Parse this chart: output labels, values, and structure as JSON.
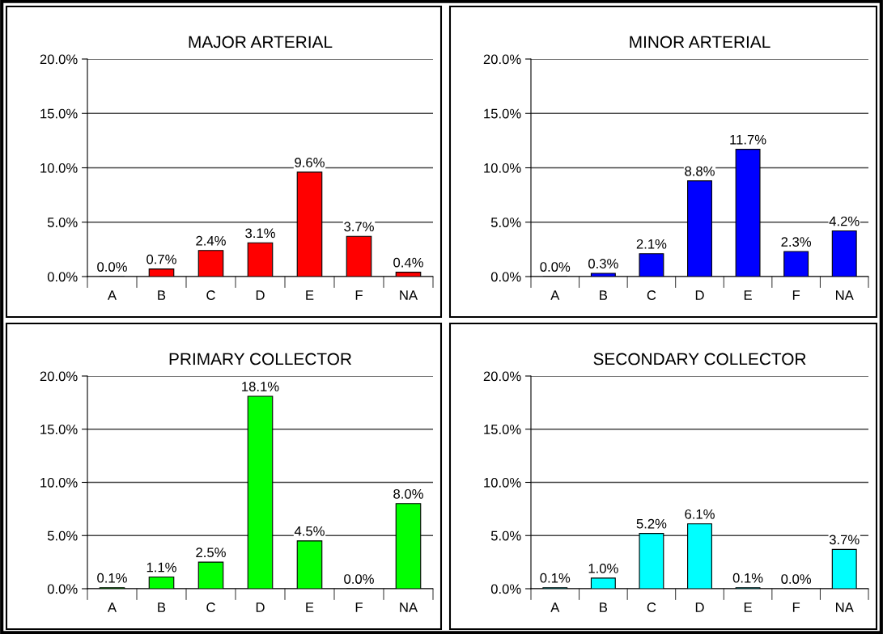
{
  "chart_data": [
    {
      "type": "bar",
      "title": "MAJOR ARTERIAL",
      "categories": [
        "A",
        "B",
        "C",
        "D",
        "E",
        "F",
        "NA"
      ],
      "values": [
        0.0,
        0.7,
        2.4,
        3.1,
        9.6,
        3.7,
        0.4
      ],
      "color": "#ff0000",
      "value_labels": [
        "0.0%",
        "0.7%",
        "2.4%",
        "3.1%",
        "9.6%",
        "3.7%",
        "0.4%"
      ],
      "ylim": [
        0,
        20
      ],
      "yticks": [
        {
          "value": 0,
          "label": "0.0%"
        },
        {
          "value": 5,
          "label": "5.0%"
        },
        {
          "value": 10,
          "label": "10.0%"
        },
        {
          "value": 15,
          "label": "15.0%"
        },
        {
          "value": 20,
          "label": "20.0%"
        }
      ],
      "grid": "y"
    },
    {
      "type": "bar",
      "title": "MINOR ARTERIAL",
      "categories": [
        "A",
        "B",
        "C",
        "D",
        "E",
        "F",
        "NA"
      ],
      "values": [
        0.0,
        0.3,
        2.1,
        8.8,
        11.7,
        2.3,
        4.2
      ],
      "color": "#0000ff",
      "value_labels": [
        "0.0%",
        "0.3%",
        "2.1%",
        "8.8%",
        "11.7%",
        "2.3%",
        "4.2%"
      ],
      "ylim": [
        0,
        20
      ],
      "yticks": [
        {
          "value": 0,
          "label": "0.0%"
        },
        {
          "value": 5,
          "label": "5.0%"
        },
        {
          "value": 10,
          "label": "10.0%"
        },
        {
          "value": 15,
          "label": "15.0%"
        },
        {
          "value": 20,
          "label": "20.0%"
        }
      ],
      "grid": "y"
    },
    {
      "type": "bar",
      "title": "PRIMARY COLLECTOR",
      "categories": [
        "A",
        "B",
        "C",
        "D",
        "E",
        "F",
        "NA"
      ],
      "values": [
        0.1,
        1.1,
        2.5,
        18.1,
        4.5,
        0.0,
        8.0
      ],
      "color": "#00ff00",
      "value_labels": [
        "0.1%",
        "1.1%",
        "2.5%",
        "18.1%",
        "4.5%",
        "0.0%",
        "8.0%"
      ],
      "ylim": [
        0,
        20
      ],
      "yticks": [
        {
          "value": 0,
          "label": "0.0%"
        },
        {
          "value": 5,
          "label": "5.0%"
        },
        {
          "value": 10,
          "label": "10.0%"
        },
        {
          "value": 15,
          "label": "15.0%"
        },
        {
          "value": 20,
          "label": "20.0%"
        }
      ],
      "grid": "y"
    },
    {
      "type": "bar",
      "title": "SECONDARY COLLECTOR",
      "categories": [
        "A",
        "B",
        "C",
        "D",
        "E",
        "F",
        "NA"
      ],
      "values": [
        0.1,
        1.0,
        5.2,
        6.1,
        0.1,
        0.0,
        3.7
      ],
      "color": "#00ffff",
      "value_labels": [
        "0.1%",
        "1.0%",
        "5.2%",
        "6.1%",
        "0.1%",
        "0.0%",
        "3.7%"
      ],
      "ylim": [
        0,
        20
      ],
      "yticks": [
        {
          "value": 0,
          "label": "0.0%"
        },
        {
          "value": 5,
          "label": "5.0%"
        },
        {
          "value": 10,
          "label": "10.0%"
        },
        {
          "value": 15,
          "label": "15.0%"
        },
        {
          "value": 20,
          "label": "20.0%"
        }
      ],
      "grid": "y"
    }
  ]
}
